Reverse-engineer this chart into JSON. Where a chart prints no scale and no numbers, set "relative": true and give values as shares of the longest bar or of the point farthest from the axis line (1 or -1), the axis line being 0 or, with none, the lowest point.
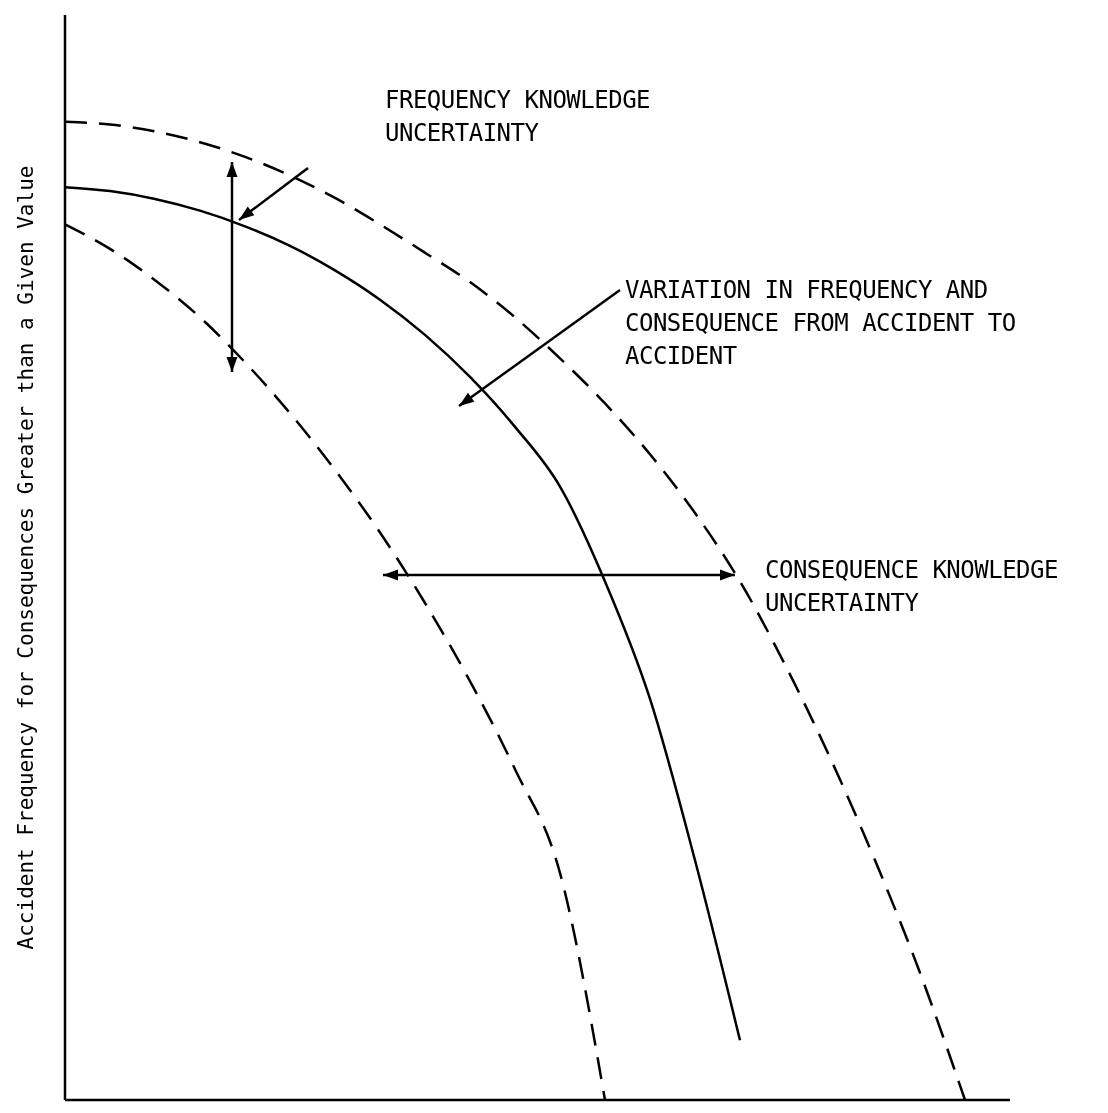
{
  "chart_data": {
    "type": "line",
    "relative": true,
    "ylabel": "Accident Frequency for Consequences Greater than a Given Value",
    "marker": "none",
    "categories": [
      null,
      null,
      null,
      null,
      null,
      null,
      null,
      null,
      null,
      null,
      null,
      null,
      null,
      null,
      null,
      null,
      null,
      null,
      null,
      null,
      null,
      null
    ],
    "series": [
      {
        "color": "#000000",
        "line_style": "dashed",
        "values": [
          1.0,
          0.997,
          0.99,
          0.979,
          0.964,
          0.945,
          0.922,
          0.895,
          0.866,
          0.836,
          0.8,
          0.758,
          0.712,
          0.66,
          0.6,
          0.53,
          0.445,
          0.35,
          0.245,
          0.13,
          0,
          null
        ]
      },
      {
        "color": "#000000",
        "line_style": "solid",
        "values": [
          0.933,
          0.929,
          0.921,
          0.909,
          0.893,
          0.873,
          0.848,
          0.818,
          0.782,
          0.739,
          0.688,
          0.627,
          0.53,
          0.41,
          0.245,
          0.061,
          null,
          null,
          null,
          null,
          null,
          null
        ]
      },
      {
        "color": "#000000",
        "line_style": "dashed",
        "values": [
          0.895,
          0.87,
          0.838,
          0.8,
          0.754,
          0.702,
          0.644,
          0.58,
          0.508,
          0.428,
          0.338,
          0.232,
          0,
          null,
          null,
          null,
          null,
          null,
          null,
          null,
          null,
          null
        ]
      }
    ],
    "annotations": [
      "FREQUENCY KNOWLEDGE UNCERTAINTY",
      "VARIATION IN FREQUENCY AND CONSEQUENCE FROM ACCIDENT TO ACCIDENT",
      "CONSEQUENCE KNOWLEDGE UNCERTAINTY"
    ]
  }
}
